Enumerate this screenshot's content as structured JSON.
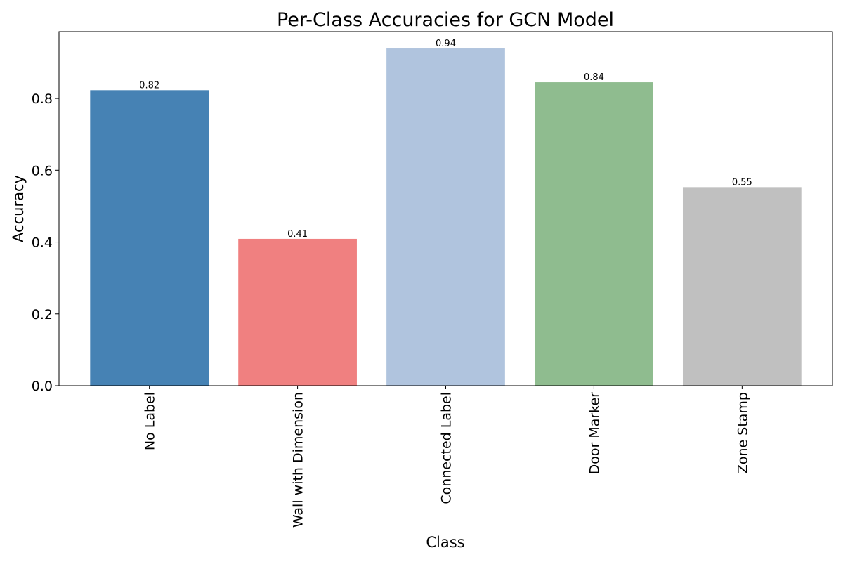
{
  "chart_data": {
    "type": "bar",
    "title": "Per-Class Accuracies for GCN Model",
    "xlabel": "Class",
    "ylabel": "Accuracy",
    "categories": [
      "No Label",
      "Wall with Dimension",
      "Connected Label",
      "Door Marker",
      "Zone Stamp"
    ],
    "values": [
      0.823,
      0.409,
      0.939,
      0.845,
      0.553
    ],
    "data_labels": [
      "0.82",
      "0.41",
      "0.94",
      "0.84",
      "0.55"
    ],
    "bar_colors": [
      "#4682b4",
      "#f08080",
      "#b0c4de",
      "#8fbc8f",
      "#c0c0c0"
    ],
    "ylim": [
      0,
      0.986
    ],
    "yticks": [
      0.0,
      0.2,
      0.4,
      0.6,
      0.8
    ],
    "ytick_labels": [
      "0.0",
      "0.2",
      "0.4",
      "0.6",
      "0.8"
    ],
    "xtick_rotation": 90,
    "grid": false,
    "legend": "none"
  }
}
